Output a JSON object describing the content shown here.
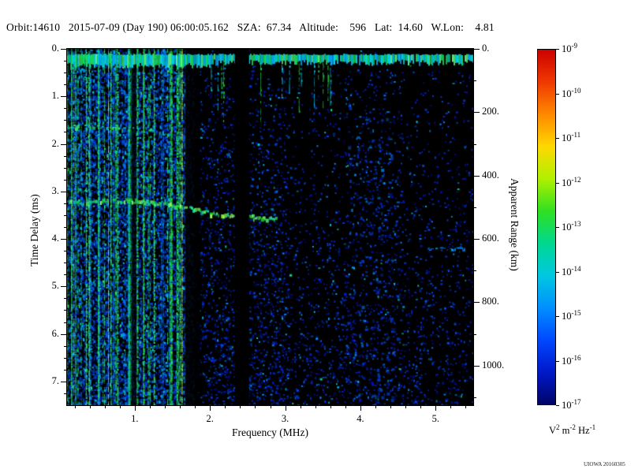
{
  "header": {
    "segments": [
      "Orbit:14610",
      "2015-07-09 (Day 190) 06:00:05.162",
      "SZA:  67.34",
      "Altitude:    596",
      "Lat:  14.60",
      "W.Lon:    4.81"
    ]
  },
  "chart_data": {
    "type": "heatmap",
    "title": "",
    "xlabel": "Frequency (MHz)",
    "ylabel_left": "Time Delay (ms)",
    "ylabel_right": "Apparent Range (km)",
    "x_range_mhz": [
      0.1,
      5.5
    ],
    "y_range_ms": [
      0,
      7.5
    ],
    "range_km_per_ms": 150,
    "x_ticks": [
      {
        "v": 1,
        "label": "1."
      },
      {
        "v": 2,
        "label": "2."
      },
      {
        "v": 3,
        "label": "3."
      },
      {
        "v": 4,
        "label": "4."
      },
      {
        "v": 5,
        "label": "5."
      }
    ],
    "y_ticks_left": [
      {
        "v": 0,
        "label": "0."
      },
      {
        "v": 1,
        "label": "1."
      },
      {
        "v": 2,
        "label": "2."
      },
      {
        "v": 3,
        "label": "3."
      },
      {
        "v": 4,
        "label": "4."
      },
      {
        "v": 5,
        "label": "5."
      },
      {
        "v": 6,
        "label": "6."
      },
      {
        "v": 7,
        "label": "7."
      }
    ],
    "y_ticks_right": [
      {
        "v": 0,
        "label": "0."
      },
      {
        "v": 200,
        "label": "200."
      },
      {
        "v": 400,
        "label": "400."
      },
      {
        "v": 600,
        "label": "600."
      },
      {
        "v": 800,
        "label": "800."
      },
      {
        "v": 1000,
        "label": "1000."
      }
    ],
    "colorbar": {
      "scale": "log",
      "tick_exponents": [
        -9,
        -10,
        -11,
        -12,
        -13,
        -14,
        -15,
        -16,
        -17
      ],
      "unit_parts": [
        [
          "V",
          "2"
        ],
        [
          "m",
          "-2"
        ],
        [
          "Hz",
          "-1"
        ]
      ],
      "colors_top_to_bottom": [
        "#cc0000",
        "#f03800",
        "#ff8800",
        "#ffd800",
        "#b0f000",
        "#30e020",
        "#00d890",
        "#00c8e0",
        "#0090ff",
        "#0048ff",
        "#0018c8",
        "#000468"
      ]
    },
    "plot_background": "#000000",
    "features": [
      {
        "name": "surface-reflection-band",
        "type": "horizontal-band",
        "delay_ms": [
          0.1,
          0.32
        ],
        "freq_mhz": [
          0.1,
          5.5
        ],
        "intensity": "high"
      },
      {
        "name": "low-frequency-interference-stripes",
        "type": "vertical-stripes",
        "freq_mhz": [
          0.1,
          1.68
        ],
        "delay_ms": [
          0,
          7.5
        ],
        "count": 46
      },
      {
        "name": "short-top-stripes",
        "type": "vertical-stripes",
        "freq_mhz": [
          1.75,
          3.6
        ],
        "delay_ms": [
          0.3,
          1.3
        ],
        "count": 14
      },
      {
        "name": "harmonic-echo-trace",
        "type": "trace",
        "points_mhz_ms": [
          [
            0.12,
            1.62
          ],
          [
            0.7,
            1.63
          ],
          [
            1.3,
            1.68
          ]
        ]
      },
      {
        "name": "ionospheric-echo-trace",
        "type": "trace",
        "points_mhz_ms": [
          [
            0.12,
            3.2
          ],
          [
            1.0,
            3.18
          ],
          [
            1.6,
            3.28
          ],
          [
            2.0,
            3.45
          ],
          [
            2.3,
            3.5
          ],
          [
            2.9,
            3.55
          ]
        ]
      },
      {
        "name": "receiver-blanked-band",
        "type": "vertical-gap",
        "freq_mhz": [
          2.33,
          2.52
        ]
      },
      {
        "name": "faint-horizontal-streak",
        "type": "trace",
        "points_mhz_ms": [
          [
            4.85,
            4.2
          ],
          [
            5.45,
            4.2
          ]
        ]
      },
      {
        "name": "background-noise-speckle",
        "type": "speckle",
        "color": "blue"
      }
    ]
  },
  "watermark": "UIOWA 20160305"
}
